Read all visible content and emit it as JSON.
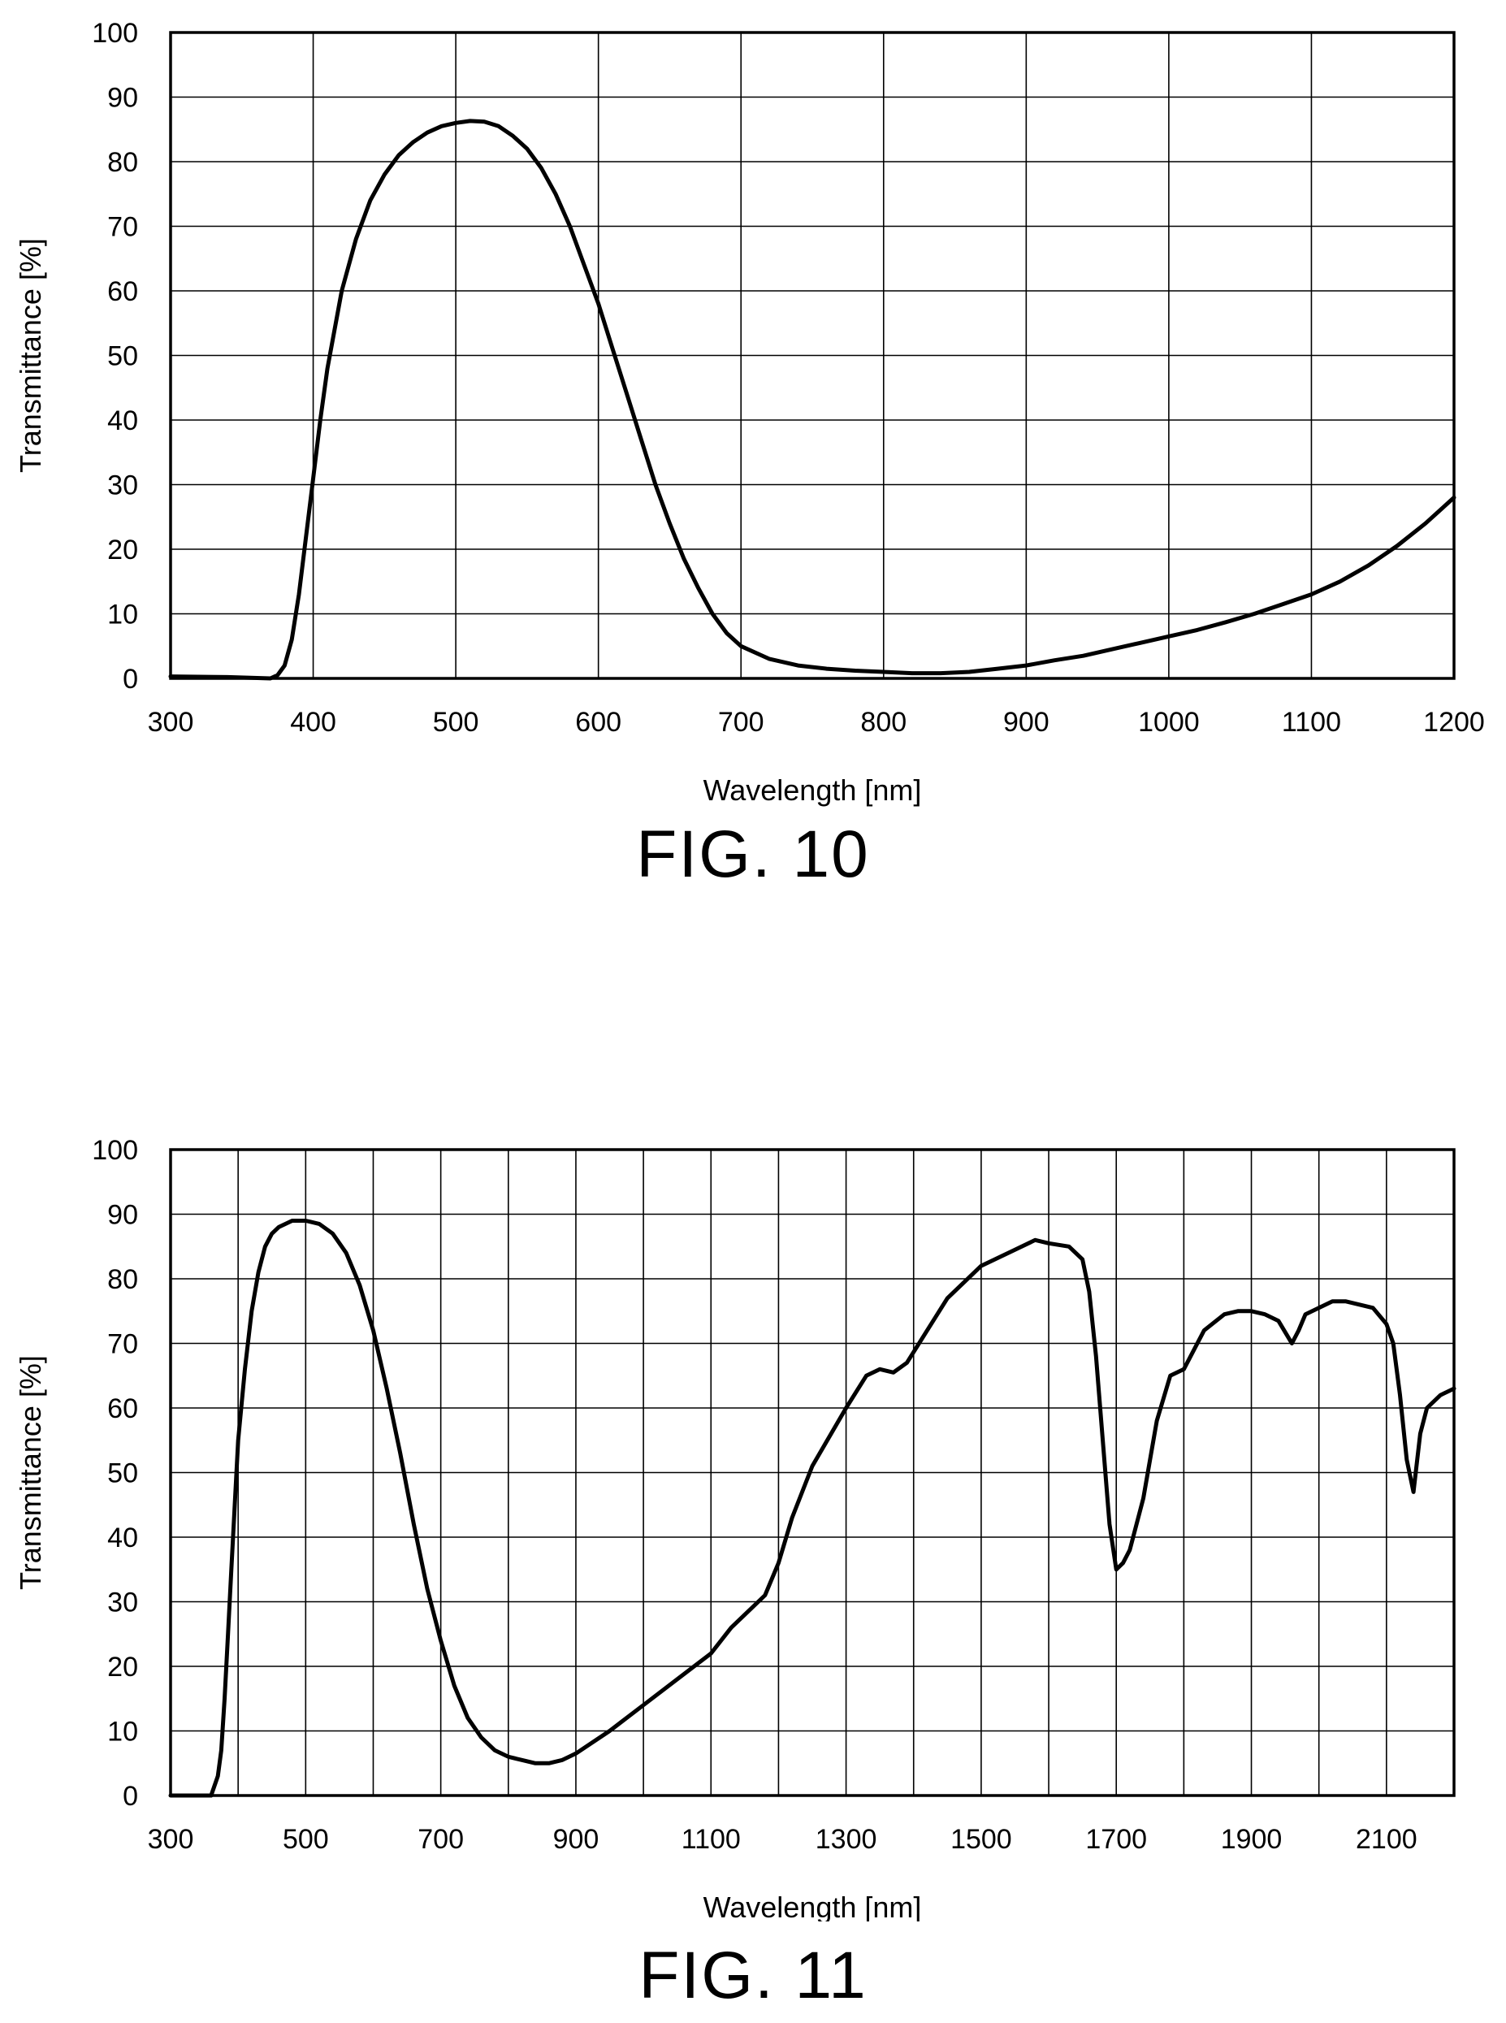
{
  "figures": [
    {
      "label": "FIG. 10",
      "chart_data": {
        "type": "line",
        "title": "",
        "xlabel": "Wavelength [nm]",
        "ylabel": "Transmittance [%]",
        "xlim": [
          300,
          1200
        ],
        "ylim": [
          0,
          100
        ],
        "xticks": [
          300,
          400,
          500,
          600,
          700,
          800,
          900,
          1000,
          1100,
          1200
        ],
        "yticks": [
          0,
          10,
          20,
          30,
          40,
          50,
          60,
          70,
          80,
          90,
          100
        ],
        "grid": true,
        "legend": "none",
        "color": "#000000",
        "series": [
          {
            "x": [
              300,
              340,
              370,
              375,
              380,
              385,
              390,
              395,
              400,
              405,
              410,
              420,
              430,
              440,
              450,
              460,
              470,
              480,
              490,
              500,
              510,
              520,
              530,
              540,
              550,
              560,
              570,
              580,
              590,
              600,
              610,
              620,
              630,
              640,
              650,
              660,
              670,
              680,
              690,
              700,
              720,
              740,
              760,
              780,
              800,
              820,
              840,
              860,
              880,
              900,
              920,
              940,
              960,
              980,
              1000,
              1020,
              1040,
              1060,
              1080,
              1100,
              1120,
              1140,
              1160,
              1180,
              1200
            ],
            "y": [
              0.3,
              0.2,
              0,
              0.5,
              2,
              6,
              13,
              22,
              31,
              40,
              48,
              60,
              68,
              74,
              78,
              81,
              83,
              84.5,
              85.5,
              86,
              86.3,
              86.2,
              85.5,
              84,
              82,
              79,
              75,
              70,
              64,
              58,
              51,
              44,
              37,
              30,
              24,
              18.5,
              14,
              10,
              7,
              5,
              3,
              2,
              1.5,
              1.2,
              1,
              0.8,
              0.8,
              1,
              1.5,
              2,
              2.8,
              3.5,
              4.5,
              5.5,
              6.5,
              7.5,
              8.7,
              10,
              11.5,
              13,
              15,
              17.5,
              20.5,
              24,
              28
            ]
          }
        ]
      }
    },
    {
      "label": "FIG. 11",
      "chart_data": {
        "type": "line",
        "title": "",
        "xlabel": "Wavelength [nm]",
        "ylabel": "Transmittance [%]",
        "xlim": [
          300,
          2200
        ],
        "ylim": [
          0,
          100
        ],
        "xticks": [
          300,
          500,
          700,
          900,
          1100,
          1300,
          1500,
          1700,
          1900,
          2100
        ],
        "yticks": [
          0,
          10,
          20,
          30,
          40,
          50,
          60,
          70,
          80,
          90,
          100
        ],
        "grid_x": [
          300,
          400,
          500,
          600,
          700,
          800,
          900,
          1000,
          1100,
          1200,
          1300,
          1400,
          1500,
          1600,
          1700,
          1800,
          1900,
          2000,
          2100,
          2200
        ],
        "grid": true,
        "legend": "none",
        "color": "#000000",
        "series": [
          {
            "x": [
              300,
              360,
              370,
              375,
              380,
              385,
              390,
              395,
              400,
              410,
              420,
              430,
              440,
              450,
              460,
              480,
              500,
              520,
              540,
              560,
              580,
              600,
              620,
              640,
              660,
              680,
              700,
              720,
              740,
              760,
              780,
              800,
              820,
              840,
              860,
              880,
              900,
              950,
              1000,
              1050,
              1100,
              1130,
              1150,
              1180,
              1200,
              1220,
              1250,
              1300,
              1330,
              1350,
              1370,
              1390,
              1420,
              1450,
              1500,
              1550,
              1580,
              1600,
              1630,
              1650,
              1660,
              1670,
              1680,
              1690,
              1700,
              1710,
              1720,
              1740,
              1760,
              1780,
              1800,
              1830,
              1860,
              1880,
              1900,
              1920,
              1940,
              1960,
              1970,
              1980,
              2000,
              2020,
              2040,
              2060,
              2080,
              2100,
              2110,
              2120,
              2130,
              2140,
              2150,
              2160,
              2180,
              2200
            ],
            "y": [
              0,
              0,
              3,
              7,
              15,
              25,
              35,
              45,
              55,
              66,
              75,
              81,
              85,
              87,
              88,
              89,
              89,
              88.5,
              87,
              84,
              79,
              72,
              63,
              53,
              42,
              32,
              24,
              17,
              12,
              9,
              7,
              6,
              5.5,
              5,
              5,
              5.5,
              6.5,
              10,
              14,
              18,
              22,
              26,
              28,
              31,
              36,
              43,
              51,
              60,
              65,
              66,
              65.5,
              67,
              72,
              77,
              82,
              84.5,
              86,
              85.5,
              85,
              83,
              78,
              68,
              55,
              42,
              35,
              36,
              38,
              46,
              58,
              65,
              66,
              72,
              74.5,
              75,
              75,
              74.5,
              73.5,
              70,
              72,
              74.5,
              75.5,
              76.5,
              76.5,
              76,
              75.5,
              73,
              70,
              62,
              52,
              47,
              56,
              60,
              62,
              63
            ]
          }
        ]
      }
    }
  ]
}
